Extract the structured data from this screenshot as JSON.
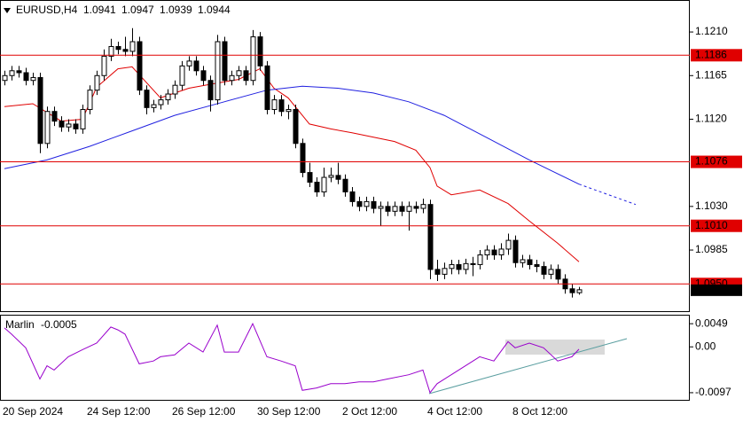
{
  "chart_data": [
    {
      "type": "candlestick",
      "symbol": "EURUSD,H4",
      "categories": [
        "20 Sep 2024",
        null,
        null,
        null,
        null,
        null,
        null,
        null,
        null,
        null,
        null,
        null,
        "24 Sep 12:00",
        null,
        null,
        null,
        null,
        null,
        null,
        null,
        null,
        null,
        null,
        null,
        "26 Sep 12:00",
        null,
        null,
        null,
        null,
        null,
        null,
        null,
        null,
        null,
        null,
        null,
        "30 Sep 12:00",
        null,
        null,
        null,
        null,
        null,
        null,
        null,
        null,
        null,
        null,
        null,
        "2 Oct 12:00",
        null,
        null,
        null,
        null,
        null,
        null,
        null,
        null,
        null,
        null,
        null,
        "4 Oct 12:00",
        null,
        null,
        null,
        null,
        null,
        null,
        null,
        null,
        null,
        null,
        null,
        "8 Oct 12:00",
        null,
        null,
        null,
        null,
        null,
        null,
        null,
        null,
        null
      ],
      "ohlc": [
        [
          1.116,
          1.117,
          1.1155,
          1.1165
        ],
        [
          1.1165,
          1.1175,
          1.116,
          1.117
        ],
        [
          1.117,
          1.1175,
          1.1163,
          1.1168
        ],
        [
          1.1168,
          1.1173,
          1.1155,
          1.116
        ],
        [
          1.116,
          1.1168,
          1.1155,
          1.1163
        ],
        [
          1.1163,
          1.1168,
          1.1085,
          1.1095
        ],
        [
          1.1095,
          1.1133,
          1.109,
          1.1128
        ],
        [
          1.1128,
          1.1133,
          1.1113,
          1.1118
        ],
        [
          1.1118,
          1.1123,
          1.1107,
          1.1112
        ],
        [
          1.1112,
          1.112,
          1.1107,
          1.1115
        ],
        [
          1.1115,
          1.112,
          1.1105,
          1.111
        ],
        [
          1.111,
          1.1135,
          1.1105,
          1.113
        ],
        [
          1.113,
          1.1155,
          1.1125,
          1.115
        ],
        [
          1.115,
          1.117,
          1.1145,
          1.1165
        ],
        [
          1.1165,
          1.1192,
          1.116,
          1.1185
        ],
        [
          1.1185,
          1.1203,
          1.118,
          1.1195
        ],
        [
          1.1195,
          1.12,
          1.1187,
          1.1192
        ],
        [
          1.1192,
          1.1205,
          1.1185,
          1.119
        ],
        [
          1.119,
          1.1214,
          1.1185,
          1.12
        ],
        [
          1.12,
          1.1205,
          1.1145,
          1.115
        ],
        [
          1.115,
          1.1155,
          1.1125,
          1.1132
        ],
        [
          1.1132,
          1.114,
          1.1127,
          1.1135
        ],
        [
          1.1135,
          1.1145,
          1.113,
          1.114
        ],
        [
          1.114,
          1.1151,
          1.1135,
          1.1146
        ],
        [
          1.1146,
          1.116,
          1.1141,
          1.1155
        ],
        [
          1.1155,
          1.118,
          1.115,
          1.1175
        ],
        [
          1.1175,
          1.1185,
          1.117,
          1.118
        ],
        [
          1.118,
          1.1185,
          1.1165,
          1.117
        ],
        [
          1.117,
          1.1175,
          1.1155,
          1.116
        ],
        [
          1.116,
          1.1165,
          1.1128,
          1.114
        ],
        [
          1.114,
          1.1207,
          1.1135,
          1.12
        ],
        [
          1.12,
          1.1205,
          1.1155,
          1.116
        ],
        [
          1.116,
          1.117,
          1.1155,
          1.1165
        ],
        [
          1.1165,
          1.1175,
          1.116,
          1.117
        ],
        [
          1.117,
          1.1175,
          1.1155,
          1.116
        ],
        [
          1.116,
          1.1212,
          1.1155,
          1.1205
        ],
        [
          1.1205,
          1.121,
          1.117,
          1.1175
        ],
        [
          1.1175,
          1.118,
          1.1125,
          1.113
        ],
        [
          1.113,
          1.1145,
          1.1125,
          1.114
        ],
        [
          1.114,
          1.1145,
          1.1123,
          1.1128
        ],
        [
          1.1128,
          1.1135,
          1.112,
          1.113
        ],
        [
          1.113,
          1.1135,
          1.109,
          1.1095
        ],
        [
          1.1095,
          1.11,
          1.106,
          1.1065
        ],
        [
          1.1065,
          1.1075,
          1.105,
          1.1055
        ],
        [
          1.1055,
          1.106,
          1.104,
          1.1045
        ],
        [
          1.1045,
          1.107,
          1.104,
          1.106
        ],
        [
          1.106,
          1.107,
          1.1055,
          1.1062
        ],
        [
          1.1062,
          1.1075,
          1.1053,
          1.1058
        ],
        [
          1.1058,
          1.1063,
          1.104,
          1.1045
        ],
        [
          1.1045,
          1.105,
          1.103,
          1.1035
        ],
        [
          1.1035,
          1.104,
          1.1025,
          1.103
        ],
        [
          1.103,
          1.104,
          1.1025,
          1.1035
        ],
        [
          1.1035,
          1.104,
          1.1023,
          1.1028
        ],
        [
          1.1028,
          1.1035,
          1.101,
          1.103
        ],
        [
          1.103,
          1.1035,
          1.102,
          1.1025
        ],
        [
          1.1025,
          1.1035,
          1.102,
          1.103
        ],
        [
          1.103,
          1.1035,
          1.102,
          1.1025
        ],
        [
          1.1025,
          1.1035,
          1.1005,
          1.103
        ],
        [
          1.103,
          1.1035,
          1.1023,
          1.1028
        ],
        [
          1.1028,
          1.1038,
          1.1023,
          1.1032
        ],
        [
          1.1032,
          1.1037,
          1.0955,
          1.0965
        ],
        [
          1.0965,
          1.0975,
          1.0953,
          1.096
        ],
        [
          1.096,
          1.0972,
          1.0955,
          1.0966
        ],
        [
          1.0966,
          1.0975,
          1.096,
          1.097
        ],
        [
          1.097,
          1.0975,
          1.096,
          1.0965
        ],
        [
          1.0965,
          1.0976,
          1.096,
          1.0971
        ],
        [
          1.0971,
          1.0978,
          1.0958,
          1.097
        ],
        [
          1.097,
          1.0985,
          1.0965,
          1.098
        ],
        [
          1.098,
          1.099,
          1.0975,
          1.0985
        ],
        [
          1.0985,
          1.099,
          1.0975,
          1.098
        ],
        [
          1.098,
          1.0992,
          1.0975,
          1.0986
        ],
        [
          1.0986,
          1.1002,
          1.098,
          1.0995
        ],
        [
          1.0995,
          1.1,
          1.0967,
          1.0972
        ],
        [
          1.0972,
          1.098,
          1.0967,
          1.0975
        ],
        [
          1.0975,
          1.098,
          1.0965,
          1.097
        ],
        [
          1.097,
          1.0975,
          1.0962,
          1.0968
        ],
        [
          1.0968,
          1.0973,
          1.0955,
          1.096
        ],
        [
          1.096,
          1.097,
          1.0955,
          1.0965
        ],
        [
          1.0965,
          1.097,
          1.095,
          1.0955
        ],
        [
          1.0955,
          1.096,
          1.094,
          1.0945
        ],
        [
          1.0945,
          1.095,
          1.0936,
          1.0941
        ],
        [
          1.0941,
          1.0947,
          1.0939,
          1.0944
        ]
      ],
      "ylim": [
        1.0921,
        1.1243
      ],
      "yticks": [
        {
          "value": 1.121,
          "label": "1.1210"
        },
        1.1165,
        {
          "value": 1.112,
          "label": "1.1120"
        },
        {
          "value": 1.103,
          "label": "1.1030"
        },
        1.0985
      ],
      "levels": [
        1.1186,
        1.1076,
        {
          "value": 1.101,
          "label": "1.1010"
        },
        {
          "value": 1.095,
          "label": "1.0950"
        }
      ],
      "level_color": "#e00000",
      "overlays": [
        {
          "color": "#e00000",
          "dashed": false,
          "x": [
            0,
            4,
            8,
            11,
            13,
            16,
            18,
            22,
            26,
            29,
            33,
            36,
            38,
            40,
            43,
            46,
            49,
            55,
            58,
            60,
            61,
            63,
            67,
            71,
            74,
            78,
            81
          ],
          "values": [
            1.1133,
            1.1136,
            1.1118,
            1.112,
            1.1153,
            1.1172,
            1.1174,
            1.1142,
            1.1152,
            1.1156,
            1.1161,
            1.1172,
            1.1152,
            1.1142,
            1.1115,
            1.111,
            1.1106,
            1.1097,
            1.1088,
            1.107,
            1.1051,
            1.1042,
            1.1047,
            1.1033,
            1.1015,
            1.0992,
            1.0973
          ]
        },
        {
          "color": "#2020e0",
          "dashed": false,
          "x": [
            0,
            6,
            12,
            18,
            24,
            31,
            37,
            42,
            47,
            52,
            57,
            62,
            68,
            74,
            81
          ],
          "values": [
            1.1069,
            1.1078,
            1.1092,
            1.1108,
            1.1124,
            1.1138,
            1.115,
            1.1154,
            1.1152,
            1.1147,
            1.1138,
            1.1124,
            1.1101,
            1.1078,
            1.1053
          ]
        },
        {
          "color": "#2020e0",
          "dashed": true,
          "x": [
            81,
            89
          ],
          "values": [
            1.1053,
            1.1032
          ]
        }
      ]
    },
    {
      "type": "line",
      "name": "Marlin",
      "color": "#9900cc",
      "x": [
        0,
        1,
        3,
        5,
        6,
        7,
        9,
        11,
        13,
        15,
        16,
        17,
        19,
        21,
        22,
        24,
        26,
        28,
        30,
        31,
        33,
        35,
        37,
        39,
        41,
        42,
        44,
        46,
        48,
        50,
        52,
        54,
        57,
        59,
        60,
        61,
        63,
        65,
        67,
        69,
        71,
        72,
        74,
        76,
        78,
        80,
        81
      ],
      "values": [
        0.004,
        0.0027,
        -0.0002,
        -0.0068,
        -0.004,
        -0.0049,
        -0.0021,
        -0.0006,
        0.0008,
        0.0042,
        0.0036,
        0.0027,
        -0.0036,
        -0.003,
        -0.0021,
        -0.0017,
        0.0008,
        -0.0011,
        0.0046,
        -0.0011,
        -0.0011,
        0.0049,
        -0.0021,
        -0.003,
        -0.004,
        -0.0092,
        -0.0087,
        -0.0078,
        -0.0078,
        -0.0074,
        -0.0074,
        -0.0068,
        -0.0059,
        -0.0049,
        -0.0097,
        -0.0078,
        -0.0059,
        -0.004,
        -0.0021,
        -0.003,
        0.0011,
        -0.0002,
        0.0008,
        -0.0002,
        -0.003,
        -0.0021,
        -0.0005
      ],
      "ylim": [
        -0.0114,
        0.0068
      ],
      "yticks": [
        0.0049,
        {
          "value": 0,
          "label": "0.00"
        },
        -0.0097
      ]
    }
  ]
}
